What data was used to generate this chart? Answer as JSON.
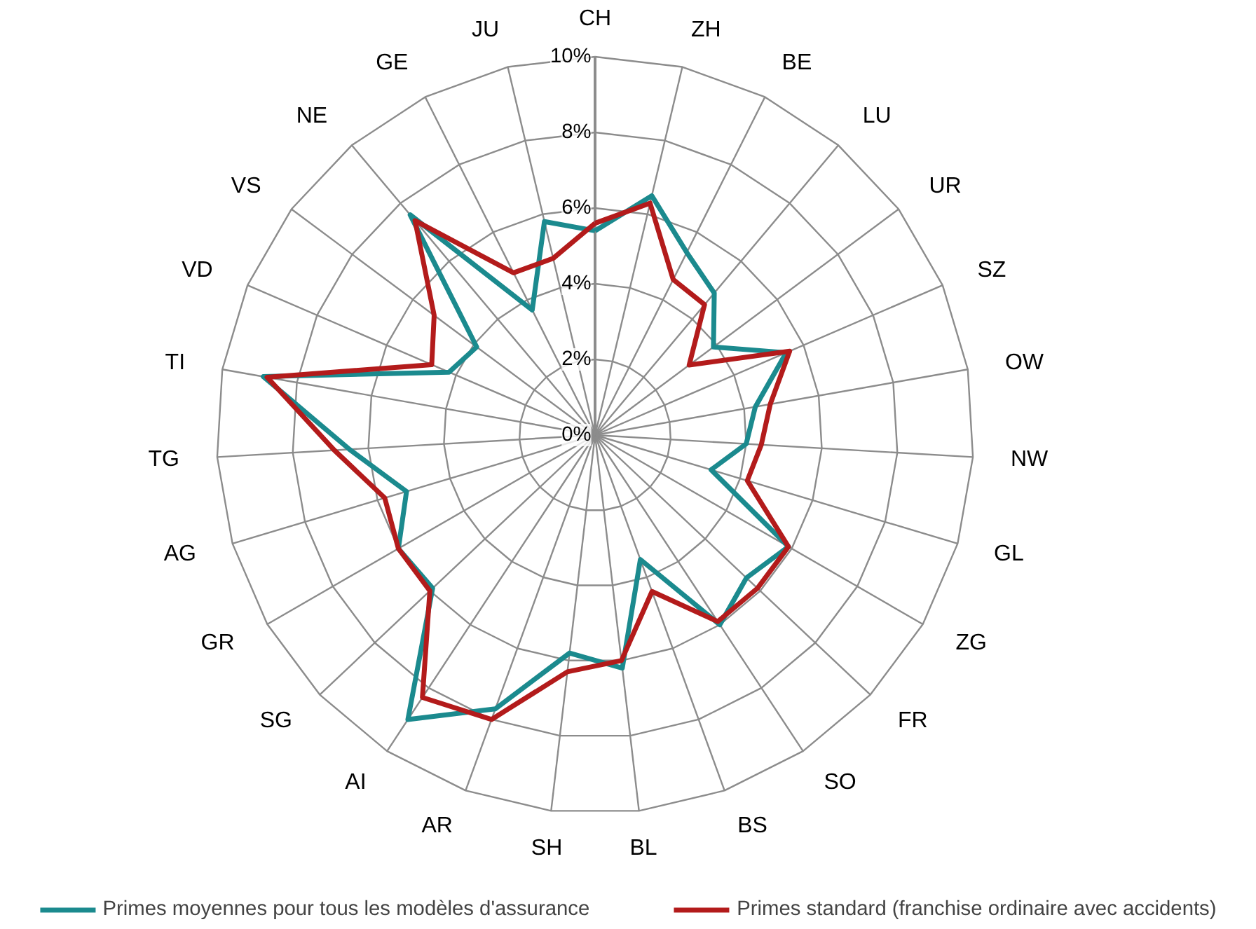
{
  "chart_data": {
    "type": "radar",
    "categories": [
      "CH",
      "ZH",
      "BE",
      "LU",
      "UR",
      "SZ",
      "OW",
      "NW",
      "GL",
      "ZG",
      "FR",
      "SO",
      "BS",
      "BL",
      "SH",
      "AR",
      "AI",
      "SG",
      "GR",
      "AG",
      "TG",
      "TI",
      "VD",
      "VS",
      "NE",
      "GE",
      "JU"
    ],
    "series": [
      {
        "name": "Primes moyennes pour tous les modèles d'assurance",
        "color": "#1b8a8e",
        "values": [
          5.4,
          6.5,
          5.4,
          4.9,
          3.9,
          5.5,
          4.3,
          4.0,
          3.2,
          5.9,
          5.5,
          6.0,
          3.5,
          6.2,
          5.8,
          7.7,
          9.0,
          5.9,
          6.0,
          5.2,
          6.5,
          8.9,
          4.2,
          3.9,
          7.6,
          3.7,
          5.8
        ]
      },
      {
        "name": "Primes standard (franchise ordinaire avec accidents)",
        "color": "#b31b1b",
        "values": [
          5.6,
          6.3,
          4.6,
          4.5,
          3.1,
          5.6,
          4.7,
          4.4,
          4.2,
          5.9,
          5.9,
          5.9,
          4.4,
          6.0,
          6.3,
          8.0,
          8.3,
          6.0,
          6.0,
          5.8,
          6.9,
          8.8,
          4.7,
          5.3,
          7.4,
          4.8,
          4.8
        ]
      }
    ],
    "ylim": [
      0,
      10
    ],
    "yticks": [
      {
        "value": 0,
        "label": "0%"
      },
      {
        "value": 2,
        "label": "2%"
      },
      {
        "value": 4,
        "label": "4%"
      },
      {
        "value": 6,
        "label": "6%"
      },
      {
        "value": 8,
        "label": "8%"
      },
      {
        "value": 10,
        "label": "10%"
      }
    ],
    "grid": true,
    "legend": "bottom"
  }
}
